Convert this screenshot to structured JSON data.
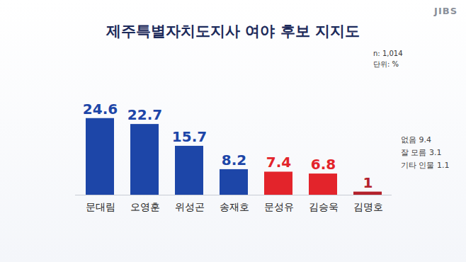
{
  "chart_data": {
    "type": "bar",
    "title": "제주특별자치도지사 여야 후보 지지도",
    "logo": "JIBS",
    "annotations": [
      "n: 1,014",
      "단위: %",
      "없음 9.4",
      "잘 모름 3.1",
      "기타 인물 1.1"
    ],
    "categories": [
      "문대림",
      "오영훈",
      "위성곤",
      "송재호",
      "문성유",
      "김승욱",
      "김명호"
    ],
    "values": [
      24.6,
      22.7,
      15.7,
      8.2,
      7.4,
      6.8,
      1.0
    ],
    "colors": [
      "#1d46a8",
      "#1d46a8",
      "#1d46a8",
      "#1d46a8",
      "#e3242b",
      "#e3242b",
      "#b4212b"
    ],
    "ylim": [
      0,
      30
    ],
    "yticks": [],
    "grid": false,
    "data_labels": true,
    "tick_labels": "x"
  }
}
